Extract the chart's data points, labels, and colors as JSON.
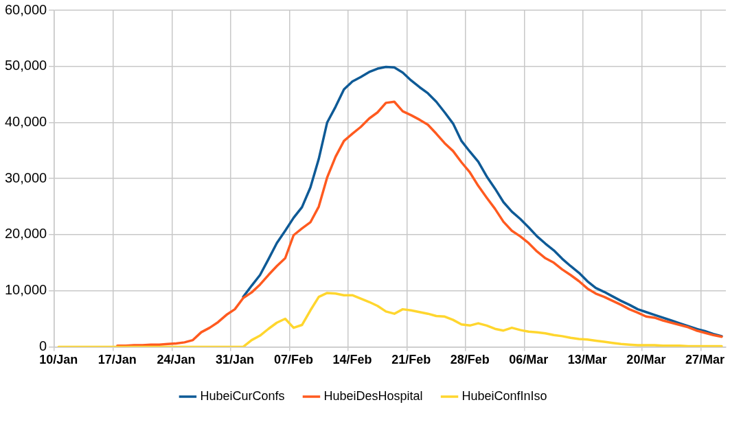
{
  "chart_data": {
    "type": "line",
    "categories": [
      "10/Jan",
      null,
      null,
      null,
      null,
      null,
      null,
      "17/Jan",
      null,
      null,
      null,
      null,
      null,
      null,
      "24/Jan",
      null,
      null,
      null,
      null,
      null,
      null,
      "31/Jan",
      null,
      null,
      null,
      null,
      null,
      null,
      "07/Feb",
      null,
      null,
      null,
      null,
      null,
      null,
      "14/Feb",
      null,
      null,
      null,
      null,
      null,
      null,
      "21/Feb",
      null,
      null,
      null,
      null,
      null,
      null,
      "28/Feb",
      null,
      null,
      null,
      null,
      null,
      null,
      "06/Mar",
      null,
      null,
      null,
      null,
      null,
      null,
      "13/Mar",
      null,
      null,
      null,
      null,
      null,
      null,
      "20/Mar",
      null,
      null,
      null,
      null,
      null,
      null,
      "27/Mar",
      null,
      null
    ],
    "series": [
      {
        "name": "HubeiCurConfs",
        "color": "#0e5a96",
        "values": [
          null,
          null,
          null,
          null,
          null,
          null,
          null,
          null,
          null,
          null,
          null,
          null,
          null,
          null,
          null,
          null,
          null,
          null,
          null,
          null,
          null,
          null,
          8900,
          10900,
          12800,
          15600,
          18500,
          20700,
          23000,
          24900,
          28400,
          33500,
          40000,
          42800,
          45900,
          47300,
          48100,
          49000,
          49600,
          49900,
          49800,
          48900,
          47500,
          46300,
          45200,
          43700,
          41800,
          39800,
          36700,
          34800,
          33000,
          30400,
          28200,
          25800,
          24100,
          22800,
          21300,
          19700,
          18400,
          17200,
          15700,
          14400,
          13200,
          11700,
          10500,
          9800,
          9000,
          8200,
          7500,
          6700,
          6200,
          5700,
          5200,
          4700,
          4200,
          3700,
          3200,
          2800,
          2300,
          1900
        ]
      },
      {
        "name": "HubeiDesHospital",
        "color": "#ff5a1f",
        "values": [
          null,
          null,
          null,
          null,
          null,
          null,
          null,
          200,
          200,
          300,
          300,
          400,
          400,
          500,
          600,
          800,
          1200,
          2600,
          3400,
          4400,
          5700,
          6700,
          8700,
          9700,
          11100,
          12800,
          14400,
          15800,
          19900,
          21100,
          22200,
          25000,
          30200,
          33900,
          36700,
          38000,
          39200,
          40700,
          41800,
          43500,
          43700,
          42000,
          41300,
          40500,
          39600,
          38000,
          36300,
          34900,
          32900,
          31100,
          28700,
          26600,
          24600,
          22300,
          20700,
          19700,
          18500,
          17000,
          15800,
          15000,
          13800,
          12800,
          11700,
          10400,
          9500,
          8900,
          8200,
          7500,
          6700,
          6100,
          5400,
          5200,
          4700,
          4300,
          3900,
          3500,
          2900,
          2500,
          2100,
          1800
        ]
      },
      {
        "name": "HubeiConfInIso",
        "color": "#ffd62e",
        "values": [
          0,
          0,
          0,
          0,
          0,
          0,
          0,
          0,
          0,
          0,
          0,
          0,
          0,
          0,
          0,
          0,
          0,
          0,
          0,
          0,
          0,
          0,
          0,
          1200,
          2000,
          3200,
          4300,
          5000,
          3400,
          3900,
          6500,
          8900,
          9600,
          9500,
          9200,
          9200,
          8600,
          8000,
          7300,
          6300,
          5900,
          6700,
          6500,
          6200,
          5900,
          5500,
          5400,
          4800,
          4000,
          3800,
          4200,
          3800,
          3200,
          2900,
          3400,
          3000,
          2700,
          2600,
          2400,
          2100,
          1900,
          1600,
          1400,
          1300,
          1100,
          900,
          700,
          500,
          400,
          300,
          300,
          300,
          200,
          200,
          200,
          100,
          100,
          100,
          100,
          100
        ]
      }
    ],
    "ylim": [
      0,
      60000
    ],
    "yticks": [
      {
        "value": 0,
        "label": "0"
      },
      {
        "value": 10000,
        "label": "10,000"
      },
      {
        "value": 20000,
        "label": "20,000"
      },
      {
        "value": 30000,
        "label": "30,000"
      },
      {
        "value": 40000,
        "label": "40,000"
      },
      {
        "value": 50000,
        "label": "50,000"
      },
      {
        "value": 60000,
        "label": "60,000"
      }
    ],
    "grid": true,
    "legend": "bottom"
  }
}
